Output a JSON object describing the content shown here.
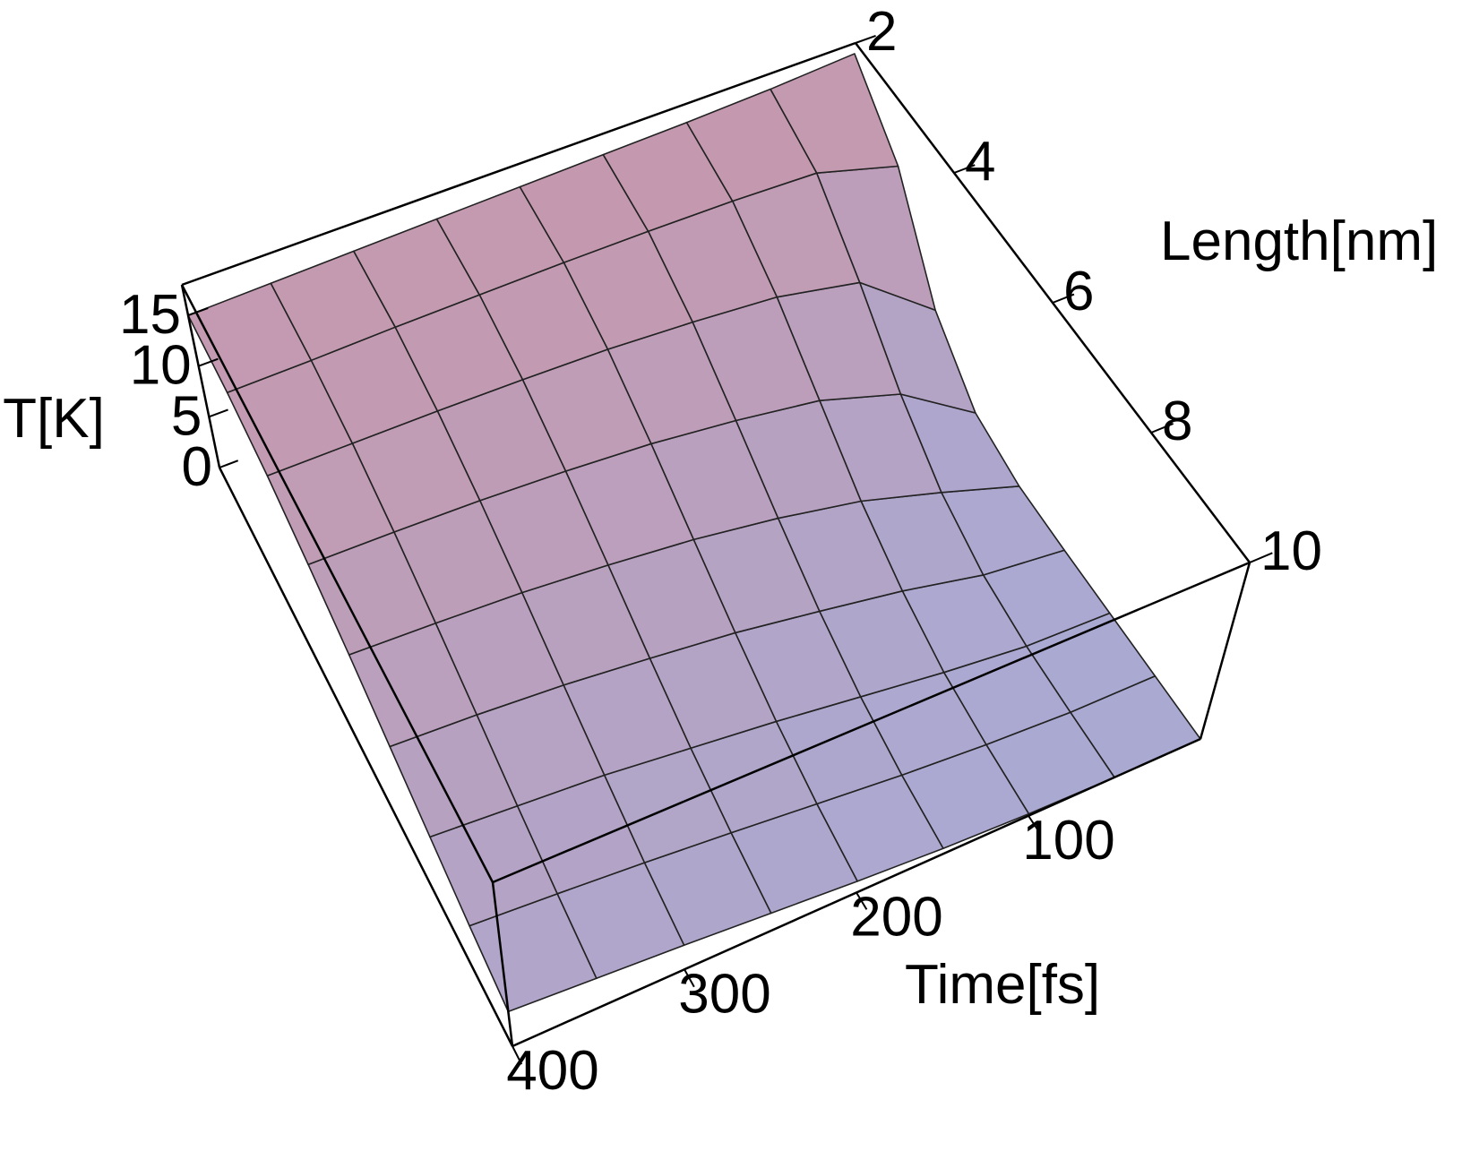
{
  "chart_data": {
    "type": "surface",
    "xlabel": "Time[fs]",
    "ylabel": "Length[nm]",
    "zlabel": "T[K]",
    "x": [
      0,
      50,
      100,
      150,
      200,
      250,
      300,
      350,
      400
    ],
    "y": [
      2,
      3,
      4,
      5,
      6,
      7,
      8,
      9,
      10
    ],
    "z": [
      [
        17.0,
        12.5,
        4.9,
        1.1,
        0.1,
        0.0,
        0.0,
        0.0,
        0.0
      ],
      [
        16.5,
        14.8,
        10.6,
        6.1,
        2.8,
        1.0,
        0.3,
        0.1,
        0.0
      ],
      [
        16.2,
        15.1,
        12.3,
        8.7,
        5.3,
        2.9,
        1.3,
        0.6,
        0.2
      ],
      [
        16.0,
        15.2,
        13.0,
        10.0,
        7.0,
        4.4,
        2.5,
        1.3,
        0.6
      ],
      [
        15.8,
        15.2,
        13.5,
        11.0,
        8.3,
        5.8,
        3.7,
        2.2,
        1.2
      ],
      [
        15.6,
        15.1,
        13.7,
        11.6,
        9.2,
        6.8,
        4.7,
        3.1,
        1.9
      ],
      [
        15.4,
        15.0,
        13.8,
        12.0,
        9.9,
        7.7,
        5.7,
        3.9,
        2.6
      ],
      [
        15.2,
        14.8,
        13.8,
        12.2,
        10.3,
        8.3,
        6.3,
        4.6,
        3.2
      ],
      [
        15.0,
        14.7,
        13.8,
        12.3,
        10.6,
        8.7,
        6.9,
        5.2,
        3.8
      ]
    ],
    "xlim": [
      0,
      400
    ],
    "ylim": [
      2,
      10
    ],
    "zlim": [
      0,
      18
    ],
    "xticks": [
      100,
      200,
      300,
      400
    ],
    "yticks": [
      2,
      4,
      6,
      8,
      10
    ],
    "zticks": [
      0,
      5,
      10,
      15
    ],
    "colors": {
      "low": "#aaa9d2",
      "high": "#c897aa"
    },
    "mesh": true
  }
}
